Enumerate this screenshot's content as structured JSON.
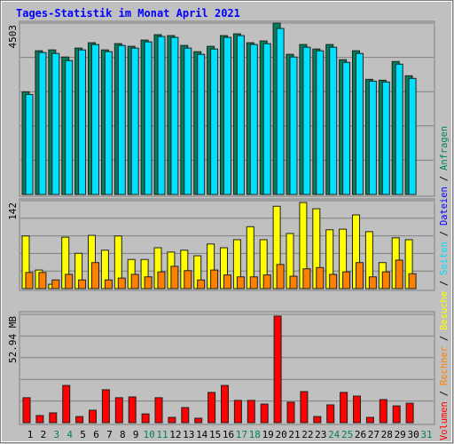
{
  "title": "Tages-Statistik im Monat April 2021",
  "legend": {
    "separator": "/",
    "items": [
      {
        "name": "Volumen",
        "color": "#ff0000"
      },
      {
        "name": "Rechner",
        "color": "#ff8000"
      },
      {
        "name": "Besuche",
        "color": "#ffff00"
      },
      {
        "name": "Seiten",
        "color": "#00e0ff"
      },
      {
        "name": "Dateien",
        "color": "#0000ff"
      },
      {
        "name": "Anfragen",
        "color": "#00805c"
      }
    ]
  },
  "chart_data": [
    {
      "type": "bar",
      "ylim": [
        0,
        4503
      ],
      "yticks": [
        4503
      ],
      "series": [
        {
          "name": "Anfragen",
          "color": "#00805c",
          "values": [
            2697,
            3776,
            3799,
            3612,
            3846,
            3987,
            3799,
            3963,
            3893,
            4057,
            4198,
            4174,
            3916,
            3752,
            3893,
            4174,
            4221,
            3987,
            4034,
            4503,
            3682,
            3940,
            3822,
            3940,
            3541,
            3776,
            3025,
            3002,
            3494,
            3119,
            null
          ]
        },
        {
          "name": "Seiten",
          "color": "#00e0ff",
          "values": [
            2627,
            3729,
            3705,
            3518,
            3799,
            3940,
            3752,
            3916,
            3846,
            4010,
            4151,
            4127,
            3846,
            3682,
            3822,
            4127,
            4174,
            3940,
            3963,
            4362,
            3611,
            3869,
            3775,
            3869,
            3471,
            3705,
            2978,
            2955,
            3424,
            3049,
            null
          ]
        }
      ]
    },
    {
      "type": "bar",
      "ylim": [
        0,
        142
      ],
      "yticks": [
        142
      ],
      "series": [
        {
          "name": "Besuche",
          "color": "#ffff00",
          "values": [
            85,
            30,
            7,
            83,
            57,
            86,
            62,
            85,
            47,
            47,
            66,
            59,
            62,
            53,
            72,
            66,
            79,
            100,
            79,
            133,
            89,
            139,
            129,
            95,
            96,
            119,
            92,
            42,
            82,
            79,
            null
          ]
        },
        {
          "name": "Rechner",
          "color": "#ff8000",
          "values": [
            26,
            26,
            14,
            23,
            14,
            42,
            14,
            17,
            23,
            19,
            27,
            36,
            29,
            14,
            30,
            22,
            19,
            19,
            22,
            39,
            20,
            32,
            34,
            23,
            27,
            42,
            19,
            27,
            46,
            24,
            null
          ]
        }
      ]
    },
    {
      "type": "bar",
      "ylim": [
        0,
        52.94
      ],
      "yticks": [
        {
          "value": 52.94,
          "label": "52.94 MB"
        }
      ],
      "categories": [
        "1",
        "2",
        "3",
        "4",
        "5",
        "6",
        "7",
        "8",
        "9",
        "10",
        "11",
        "12",
        "13",
        "14",
        "15",
        "16",
        "17",
        "18",
        "19",
        "20",
        "21",
        "22",
        "23",
        "24",
        "25",
        "26",
        "27",
        "28",
        "29",
        "30",
        "31"
      ],
      "category_colors": [
        "#000",
        "#000",
        "#00805c",
        "#00805c",
        "#000",
        "#000",
        "#000",
        "#000",
        "#000",
        "#00805c",
        "#00805c",
        "#000",
        "#000",
        "#000",
        "#000",
        "#000",
        "#00805c",
        "#00805c",
        "#000",
        "#000",
        "#000",
        "#000",
        "#000",
        "#00805c",
        "#00805c",
        "#000",
        "#000",
        "#000",
        "#000",
        "#000",
        "#00805c"
      ],
      "series": [
        {
          "name": "Volumen",
          "color": "#ff0000",
          "values": [
            12.2,
            3.5,
            4.8,
            18.2,
            3.0,
            6.1,
            16.1,
            12.2,
            12.6,
            4.3,
            12.2,
            2.6,
            7.4,
            2.2,
            14.8,
            18.2,
            10.9,
            10.9,
            9.1,
            52.1,
            10.0,
            15.2,
            3.0,
            8.7,
            14.8,
            13.0,
            2.6,
            11.3,
            8.2,
            9.5,
            null
          ]
        }
      ]
    }
  ]
}
